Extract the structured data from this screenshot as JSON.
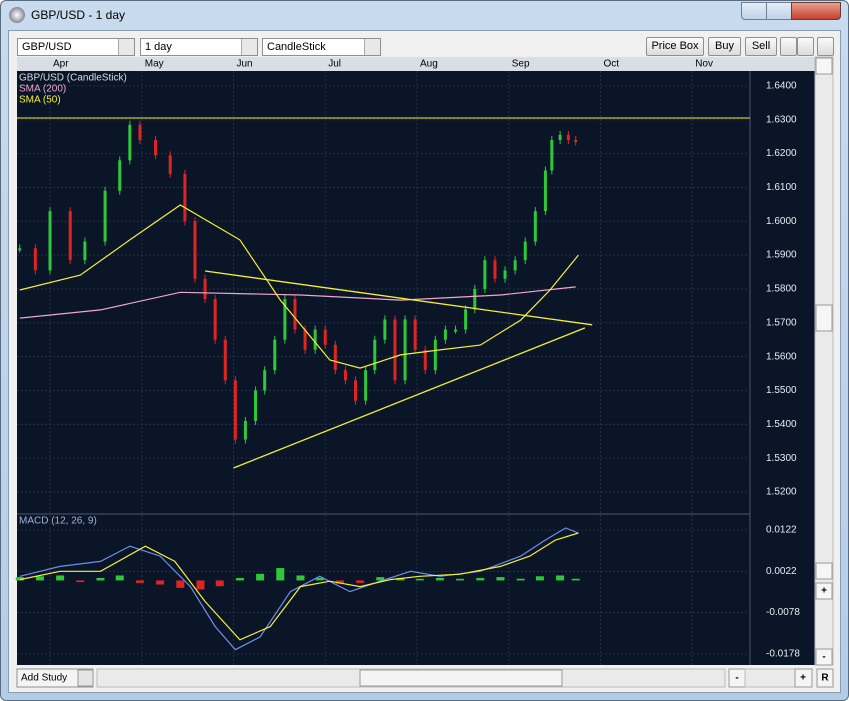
{
  "window": {
    "title": "GBP/USD - 1 day"
  },
  "toolbar": {
    "symbol": "GBP/USD",
    "interval": "1 day",
    "style": "CandleStick",
    "buttons": [
      "Price Box",
      "Buy",
      "Sell"
    ]
  },
  "side_bar": {
    "zoom_in": "+",
    "zoom_out": "-"
  },
  "footer": {
    "add_study": "Add Study",
    "zoom_out": "-",
    "zoom_in": "+",
    "reset": "R"
  },
  "chart_data": [
    {
      "type": "candlestick",
      "xlim": [
        -0.36,
        7.63
      ],
      "xticks": [
        {
          "value": 0,
          "label": "Apr"
        },
        {
          "value": 1,
          "label": "May"
        },
        {
          "value": 2,
          "label": "Jun"
        },
        {
          "value": 3,
          "label": "Jul"
        },
        {
          "value": 4,
          "label": "Aug"
        },
        {
          "value": 5,
          "label": "Sep"
        },
        {
          "value": 6,
          "label": "Oct"
        },
        {
          "value": 7,
          "label": "Nov"
        }
      ],
      "ylim": [
        1.5138,
        1.6441
      ],
      "yticks": [
        {
          "value": 1.64,
          "label": "1.6400"
        },
        {
          "value": 1.63,
          "label": "1.6300"
        },
        {
          "value": 1.62,
          "label": "1.6200"
        },
        {
          "value": 1.61,
          "label": "1.6100"
        },
        {
          "value": 1.6,
          "label": "1.6000"
        },
        {
          "value": 1.59,
          "label": "1.5900"
        },
        {
          "value": 1.58,
          "label": "1.5800"
        },
        {
          "value": 1.57,
          "label": "1.5700"
        },
        {
          "value": 1.56,
          "label": "1.5600"
        },
        {
          "value": 1.55,
          "label": "1.5500"
        },
        {
          "value": 1.54,
          "label": "1.5400"
        },
        {
          "value": 1.53,
          "label": "1.5300"
        },
        {
          "value": 1.52,
          "label": "1.5200"
        }
      ],
      "grid": true,
      "series": [
        {
          "name": "GBP/USD (CandleStick)",
          "up_color": "#2ec83a",
          "down_color": "#e02424",
          "x": [
            -0.33,
            -0.16,
            0,
            0.22,
            0.38,
            0.6,
            0.76,
            0.87,
            0.98,
            1.15,
            1.31,
            1.47,
            1.58,
            1.69,
            1.8,
            1.91,
            2.02,
            2.13,
            2.24,
            2.34,
            2.45,
            2.56,
            2.67,
            2.78,
            2.89,
            3.0,
            3.11,
            3.22,
            3.33,
            3.44,
            3.54,
            3.65,
            3.76,
            3.87,
            3.98,
            4.09,
            4.2,
            4.31,
            4.42,
            4.53,
            4.63,
            4.74,
            4.85,
            4.96,
            5.07,
            5.18,
            5.29,
            5.4,
            5.47,
            5.56,
            5.65,
            5.73
          ],
          "values": [
            1.592,
            1.5855,
            1.603,
            1.5885,
            1.594,
            1.609,
            1.618,
            1.6285,
            1.624,
            1.6195,
            1.614,
            1.6,
            1.583,
            1.577,
            1.565,
            1.553,
            1.5355,
            1.541,
            1.55,
            1.556,
            1.565,
            1.577,
            1.568,
            1.562,
            1.568,
            1.5635,
            1.556,
            1.553,
            1.547,
            1.556,
            1.565,
            1.571,
            1.553,
            1.571,
            1.562,
            1.556,
            1.565,
            1.568,
            1.568,
            1.574,
            1.58,
            1.5885,
            1.583,
            1.5855,
            1.5885,
            1.594,
            1.603,
            1.615,
            1.624,
            1.6255,
            1.624,
            1.6235
          ]
        },
        {
          "name": "SMA (200)",
          "color": "#f2a6cc",
          "x": [
            -0.33,
            0.55,
            1.42,
            2.73,
            3.82,
            4.91,
            5.73
          ],
          "values": [
            1.5714,
            1.5738,
            1.579,
            1.5782,
            1.5767,
            1.5782,
            1.5806
          ]
        },
        {
          "name": "SMA (50)",
          "color": "#f5f032",
          "x": [
            -0.33,
            0.33,
            0.87,
            1.42,
            2.07,
            2.51,
            3.05,
            3.38,
            3.82,
            4.25,
            4.69,
            5.13,
            5.45,
            5.76
          ],
          "values": [
            1.5797,
            1.5841,
            1.5945,
            1.6048,
            1.5945,
            1.5767,
            1.559,
            1.5566,
            1.5605,
            1.562,
            1.5634,
            1.5708,
            1.5797,
            1.59
          ]
        }
      ],
      "trend_lines": [
        {
          "color": "#f5f032",
          "x": [
            1.69,
            5.91
          ],
          "values": [
            1.5853,
            1.5694
          ]
        },
        {
          "color": "#f5f032",
          "x": [
            2.0,
            5.83
          ],
          "values": [
            1.5271,
            1.5685
          ]
        }
      ],
      "hlines": [
        {
          "color": "#f5f032",
          "value": 1.6305
        }
      ]
    },
    {
      "type": "macd",
      "title": "MACD (12, 26, 9)",
      "xlim": [
        -0.36,
        7.63
      ],
      "ylim": [
        -0.0205,
        0.0161
      ],
      "yticks": [
        0.0122,
        0.0022,
        -0.0078,
        -0.0178
      ],
      "grid": true,
      "series": [
        {
          "style": "bar",
          "up_color": "#2ec83a",
          "down_color": "#e02424",
          "x": [
            -0.33,
            -0.11,
            0.11,
            0.33,
            0.55,
            0.76,
            0.98,
            1.2,
            1.42,
            1.64,
            1.85,
            2.07,
            2.29,
            2.51,
            2.73,
            2.94,
            3.16,
            3.38,
            3.6,
            3.82,
            4.03,
            4.25,
            4.47,
            4.69,
            4.91,
            5.13,
            5.34,
            5.56,
            5.73
          ],
          "values": [
            0.0008,
            0.001,
            0.0012,
            -0.0004,
            0.0006,
            0.0012,
            -0.0006,
            -0.001,
            -0.0018,
            -0.0022,
            -0.0014,
            0.0006,
            0.0016,
            0.003,
            0.0012,
            0.0006,
            -0.0008,
            -0.0006,
            0.0008,
            0.0006,
            0.0004,
            0.0006,
            0.0004,
            0.0006,
            0.0008,
            0.0004,
            0.001,
            0.0012,
            0.0004
          ]
        },
        {
          "style": "line",
          "color": "#6f8fe8",
          "x": [
            -0.33,
            0.11,
            0.55,
            0.87,
            1.2,
            1.53,
            1.8,
            2.02,
            2.29,
            2.62,
            2.94,
            3.27,
            3.6,
            3.93,
            4.25,
            4.69,
            5.13,
            5.4,
            5.62,
            5.76
          ],
          "values": [
            0.001,
            0.0034,
            0.0046,
            0.0083,
            0.0059,
            -0.0015,
            -0.0112,
            -0.0168,
            -0.0137,
            -0.0027,
            0.001,
            -0.0027,
            -0.0002,
            0.0022,
            0.001,
            0.0022,
            0.0059,
            0.0098,
            0.0127,
            0.0115
          ]
        },
        {
          "style": "line",
          "color": "#f5f032",
          "x": [
            -0.33,
            0.11,
            0.55,
            1.04,
            1.36,
            1.69,
            2.07,
            2.4,
            2.73,
            3.05,
            3.38,
            3.71,
            4.03,
            4.47,
            4.91,
            5.23,
            5.51,
            5.76
          ],
          "values": [
            0.0002,
            0.0022,
            0.0022,
            0.0083,
            0.0046,
            -0.0051,
            -0.0144,
            -0.0112,
            -0.0015,
            -0.0002,
            -0.0015,
            0.0002,
            0.001,
            0.0015,
            0.0034,
            0.0059,
            0.0098,
            0.0115
          ]
        }
      ]
    }
  ]
}
